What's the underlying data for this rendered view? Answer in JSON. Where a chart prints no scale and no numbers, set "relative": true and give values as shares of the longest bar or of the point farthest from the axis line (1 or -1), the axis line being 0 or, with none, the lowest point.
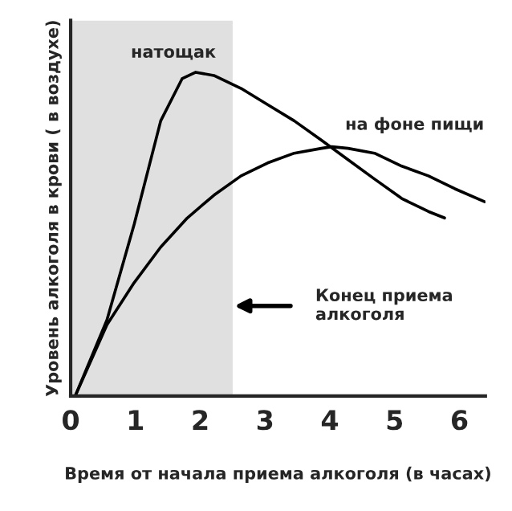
{
  "chart_data": {
    "type": "line",
    "relative": true,
    "xlabel": "Время от начала приема алкоголя (в часах)",
    "ylabel": "Уровень алкоголя в крови ( в воздухе)",
    "xlim": [
      0,
      6.4
    ],
    "xticks": [
      0,
      1,
      2,
      3,
      4,
      5,
      6
    ],
    "grid": false,
    "legend": false,
    "marker": "none",
    "line_style": "solid",
    "series": [
      {
        "name": "натощак",
        "color": "#000000",
        "x": [
          0.07,
          0.56,
          0.98,
          1.39,
          1.72,
          1.93,
          2.21,
          2.63,
          3.04,
          3.45,
          3.87,
          4.28,
          4.69,
          5.11,
          5.52,
          5.77
        ],
        "values": [
          0,
          0.235,
          0.53,
          0.85,
          0.98,
          1.0,
          0.99,
          0.95,
          0.9,
          0.85,
          0.79,
          0.73,
          0.67,
          0.61,
          0.57,
          0.55
        ]
      },
      {
        "name": "на фоне пищи",
        "color": "#000000",
        "x": [
          0.07,
          0.56,
          0.98,
          1.39,
          1.8,
          2.21,
          2.63,
          3.04,
          3.45,
          3.87,
          4.03,
          4.28,
          4.69,
          5.11,
          5.52,
          5.93,
          6.39
        ],
        "values": [
          0,
          0.22,
          0.35,
          0.46,
          0.55,
          0.62,
          0.68,
          0.72,
          0.75,
          0.765,
          0.77,
          0.765,
          0.75,
          0.71,
          0.68,
          0.64,
          0.6
        ]
      }
    ],
    "bands": [
      {
        "axis": "x",
        "from": 0,
        "to": 2.5,
        "color": "#e0e0e0"
      }
    ],
    "annotations": [
      "Конец приема\nалкоголя"
    ]
  }
}
